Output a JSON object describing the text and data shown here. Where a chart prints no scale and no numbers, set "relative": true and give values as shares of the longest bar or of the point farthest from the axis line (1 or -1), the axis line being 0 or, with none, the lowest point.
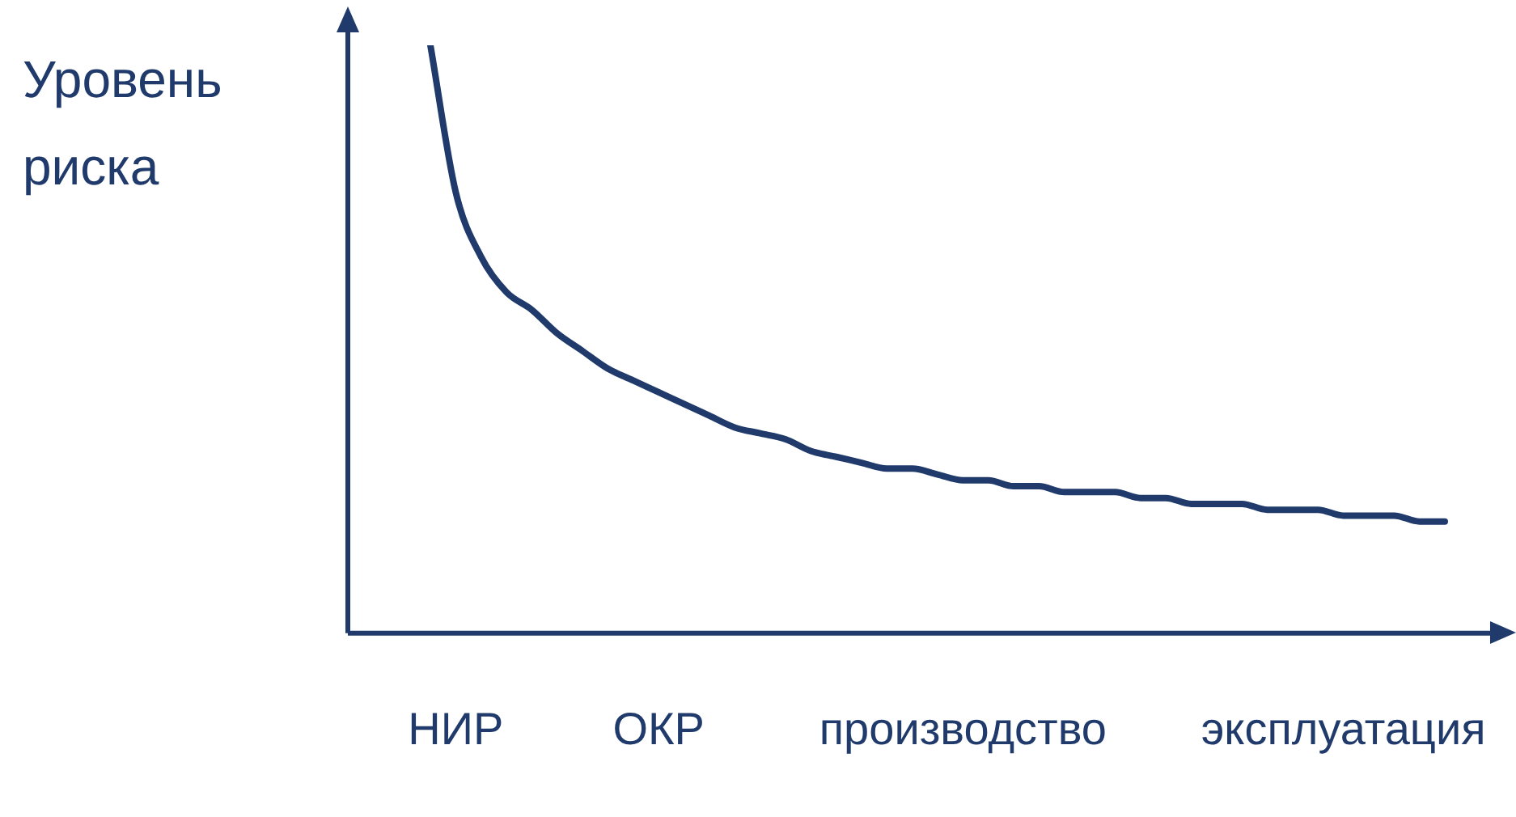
{
  "chart_data": {
    "type": "line",
    "relative": true,
    "ylabel": "Уровень риска",
    "color": "#1f3a6b",
    "marker": "none",
    "grid": false,
    "legend": false,
    "categories": [
      null,
      null,
      null,
      null,
      "НИР",
      null,
      null,
      null,
      null,
      null,
      null,
      null,
      "ОКР",
      null,
      null,
      null,
      null,
      null,
      null,
      null,
      null,
      null,
      null,
      null,
      "производство",
      null,
      null,
      null,
      null,
      null,
      null,
      null,
      null,
      null,
      null,
      null,
      null,
      null,
      null,
      "эксплуатация",
      null,
      null,
      null,
      null
    ],
    "values": [
      null,
      null,
      null,
      1.0,
      0.75,
      0.64,
      0.58,
      0.55,
      0.51,
      0.48,
      0.45,
      0.43,
      0.41,
      0.39,
      0.37,
      0.35,
      0.34,
      0.33,
      0.31,
      0.3,
      0.29,
      0.28,
      0.28,
      0.27,
      0.26,
      0.26,
      0.25,
      0.25,
      0.24,
      0.24,
      0.24,
      0.23,
      0.23,
      0.22,
      0.22,
      0.22,
      0.21,
      0.21,
      0.21,
      0.2,
      0.2,
      0.2,
      0.19,
      0.19
    ]
  }
}
